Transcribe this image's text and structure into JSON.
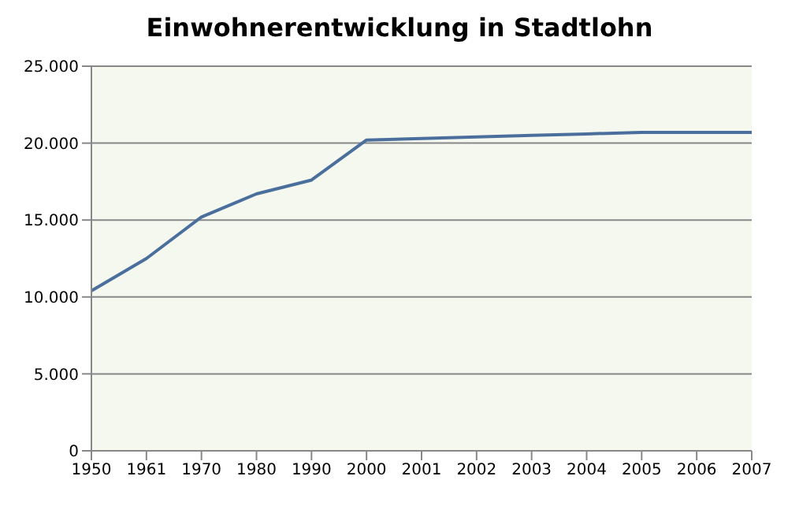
{
  "chart_data": {
    "type": "line",
    "title": "Einwohnerentwicklung in Stadtlohn",
    "categories": [
      "1950",
      "1961",
      "1970",
      "1980",
      "1990",
      "2000",
      "2001",
      "2002",
      "2003",
      "2004",
      "2005",
      "2006",
      "2007"
    ],
    "series": [
      {
        "color": "#4a6f9c",
        "values": [
          10400,
          12500,
          15200,
          16700,
          17600,
          20200,
          20300,
          20400,
          20500,
          20600,
          20700,
          20700,
          20700
        ]
      }
    ],
    "ylim": [
      0,
      25000
    ],
    "yticks": [
      0,
      {
        "value": 5000,
        "label": "5.000"
      },
      {
        "value": 10000,
        "label": "10.000"
      },
      {
        "value": 15000,
        "label": "15.000"
      },
      {
        "value": 20000,
        "label": "20.000"
      },
      {
        "value": 25000,
        "label": "25.000"
      }
    ],
    "grid": "y",
    "legend": false,
    "marker": "none",
    "line_style": "solid"
  }
}
